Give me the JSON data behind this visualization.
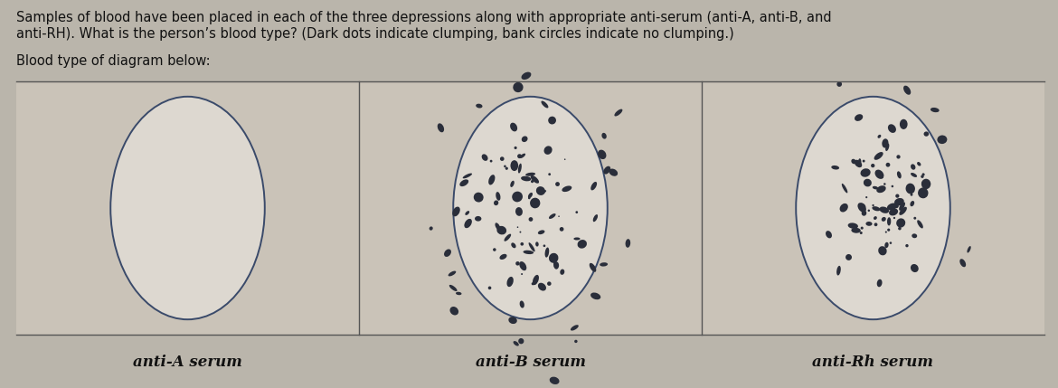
{
  "title_line1": "Samples of blood have been placed in each of the three depressions along with appropriate anti-serum (anti-A, anti-B, and",
  "title_line2": "anti-RH). What is the person’s blood type? (Dark dots indicate clumping, bank circles indicate no clumping.)",
  "subtitle": "Blood type of diagram below:",
  "labels": [
    "anti-A serum",
    "anti-B serum",
    "anti-Rh serum"
  ],
  "clumping": [
    false,
    true,
    true
  ],
  "bg_color": "#bab5ab",
  "panel_bg": "#cac3b8",
  "ellipse_fill": "#ddd8d0",
  "ellipse_edge": "#3a4a6a",
  "dot_color": "#2a2e3a",
  "text_color": "#111111",
  "line_color": "#555555",
  "figsize": [
    11.7,
    4.29
  ],
  "dpi": 100,
  "title_fontsize": 10.5,
  "label_fontsize": 12
}
